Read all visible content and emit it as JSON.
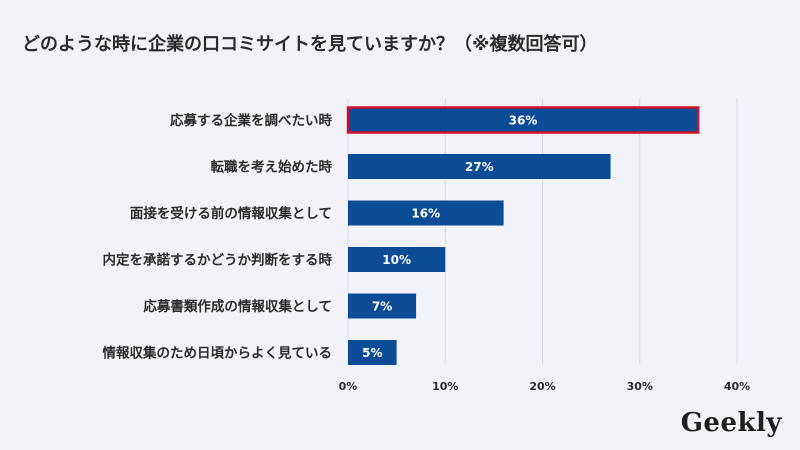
{
  "title": "どのような時に企業の口コミサイトを見ていますか？（※複数回答可）",
  "brand": "Geekly",
  "colors": {
    "background": "#f2f3f8",
    "bar": "#0c4b96",
    "highlight_border": "#d0102a",
    "grid": "#d9dbe3"
  },
  "chart_data": {
    "type": "bar",
    "orientation": "horizontal",
    "categories": [
      "応募する企業を調べたい時",
      "転職を考え始めた時",
      "面接を受ける前の情報収集として",
      "内定を承諾するかどうか判断をする時",
      "応募書類作成の情報収集として",
      "情報収集のため日頃からよく見ている"
    ],
    "values": [
      36,
      27,
      16,
      10,
      7,
      5
    ],
    "value_labels": [
      "36%",
      "27%",
      "16%",
      "10%",
      "7%",
      "5%"
    ],
    "xlim": [
      0,
      40
    ],
    "xticks": [
      0,
      10,
      20,
      30,
      40
    ],
    "xtick_labels": [
      "0%",
      "10%",
      "20%",
      "30%",
      "40%"
    ],
    "highlighted_category": "応募する企業を調べたい時",
    "grid": "vertical",
    "legend": "none"
  }
}
